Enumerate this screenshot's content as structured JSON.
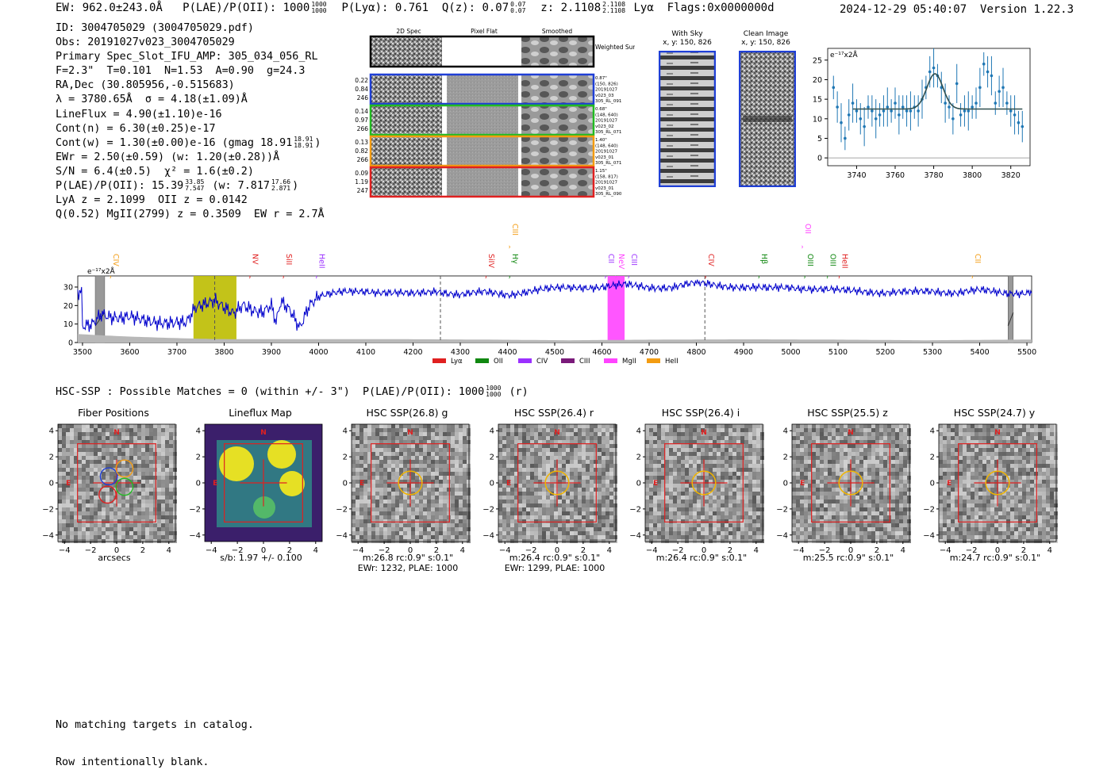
{
  "header": {
    "ew": "EW: 962.0±243.0Å",
    "plae_label": "P(LAE)/P(OII): 1000",
    "plae_hi": "1000",
    "plae_lo": "1000",
    "plya": "P(Lyα): 0.761",
    "qz_label": "Q(z): 0.07",
    "qz_hi": "0.07",
    "qz_lo": "0.07",
    "z_label": "z: 2.1108",
    "z_hi": "2.1108",
    "z_lo": "2.1108",
    "line": "Lyα",
    "flags": "Flags:0x0000000d",
    "timestamp": "2024-12-29 05:40:07",
    "version": "Version 1.22.3"
  },
  "info": {
    "id": "ID: 3004705029 (3004705029.pdf)",
    "obs": "Obs: 20191027v023_3004705029",
    "primary": "Primary Spec_Slot_IFU_AMP: 305_034_056_RL",
    "fit": "F=2.3\"  T=0.101  N=1.53  A=0.90  g=24.3",
    "radec": "RA,Dec (30.805956,-0.515683)",
    "lambda": "λ = 3780.65Å  σ = 4.18(±1.09)Å",
    "lineflux": "LineFlux = 4.90(±1.10)e-16",
    "contn": "Cont(n) = 6.30(±0.25)e-17",
    "contw": "Cont(w) = 1.30(±0.00)e-16 (gmag 18.91",
    "contw_hi": "18.91",
    "contw_lo": "18.91",
    "contw_end": ")",
    "ewr": "EWr = 2.50(±0.59) (w: 1.20(±0.28))Å",
    "sn": "S/N = 6.4(±0.5)  χ² = 1.6(±0.2)",
    "plae": "P(LAE)/P(OII): 15.39",
    "plae_hi": "33.85",
    "plae_lo": "7.547",
    "plae_w": "(w: 7.817",
    "plae_w_hi": "17.66",
    "plae_w_lo": "2.871",
    "plae_w_end": ")",
    "lya": "LyA z = 2.1099  OII z = 0.0142",
    "q": "Q(0.52) MgII(2799) z = 0.3509  EW r = 2.7Å"
  },
  "cutouts": {
    "col_labels": [
      "2D Spec",
      "Pixel Flat",
      "Smoothed"
    ],
    "weighted_label": "Weighted Sum",
    "rows": [
      {
        "left": [
          "0.22",
          "0.84",
          "246"
        ],
        "right": [
          "0.87\"",
          "(150, 826)",
          "20191027",
          "v023_03",
          "305_RL_091"
        ],
        "color": "#1f3fd6"
      },
      {
        "left": [
          "0.14",
          "0.97",
          "266"
        ],
        "right": [
          "0.68\"",
          "(148, 640)",
          "20191027",
          "v023_02",
          "305_RL_071"
        ],
        "color": "#22bb22"
      },
      {
        "left": [
          "0.13",
          "0.82",
          "266"
        ],
        "right": [
          "1.40\"",
          "(148, 640)",
          "20191027",
          "v023_01",
          "305_RL_071"
        ],
        "color": "#f39c12"
      },
      {
        "left": [
          "0.09",
          "1.19",
          "247"
        ],
        "right": [
          "1.15\"",
          "(158, 817)",
          "20191027",
          "v023_01",
          "305_RL_090"
        ],
        "color": "#e02020"
      }
    ],
    "with_sky": "With Sky",
    "with_sky_xy": "x, y: 150, 826",
    "clean": "Clean Image",
    "clean_xy": "x, y: 150, 826"
  },
  "chart_data": [
    {
      "type": "line",
      "title": "",
      "ylabel_unit": "e⁻¹⁷x2Å",
      "xlim": [
        3725,
        3830
      ],
      "ylim": [
        -2,
        28
      ],
      "xticks": [
        3740,
        3760,
        3780,
        3800,
        3820
      ],
      "yticks": [
        0,
        5,
        10,
        15,
        20,
        25
      ],
      "x": [
        3728,
        3730,
        3732,
        3734,
        3736,
        3738,
        3740,
        3742,
        3744,
        3746,
        3748,
        3750,
        3752,
        3754,
        3756,
        3758,
        3760,
        3762,
        3764,
        3766,
        3768,
        3770,
        3772,
        3774,
        3776,
        3778,
        3780,
        3782,
        3784,
        3786,
        3788,
        3790,
        3792,
        3794,
        3796,
        3798,
        3800,
        3802,
        3804,
        3806,
        3808,
        3810,
        3812,
        3814,
        3816,
        3818,
        3820,
        3822,
        3824,
        3826
      ],
      "y": [
        18,
        13,
        9,
        5,
        11,
        14,
        12,
        10,
        8,
        13,
        12,
        10,
        11,
        12,
        13,
        12,
        14,
        11,
        13,
        12,
        12,
        13,
        12,
        15,
        18,
        22,
        23,
        21,
        18,
        14,
        13,
        10,
        19,
        11,
        12,
        12,
        13,
        14,
        18,
        24,
        22,
        21,
        14,
        17,
        18,
        14,
        12,
        11,
        9,
        8
      ],
      "fit": {
        "center": 3780.65,
        "sigma": 4.18,
        "baseline": 12.5,
        "peak": 21.5
      }
    },
    {
      "type": "line",
      "ylabel_unit": "e⁻¹⁷x2Å",
      "xlim": [
        3490,
        5510
      ],
      "ylim": [
        0,
        36
      ],
      "xticks": [
        3500,
        3600,
        3700,
        3800,
        3900,
        4000,
        4100,
        4200,
        4300,
        4400,
        4500,
        4600,
        4700,
        4800,
        4900,
        5000,
        5100,
        5200,
        5300,
        5400,
        5500
      ],
      "yticks": [
        0,
        10,
        20,
        30
      ],
      "highlight_bands": [
        {
          "from": 3735,
          "to": 3826,
          "color": "#bdbd00"
        },
        {
          "from": 4612,
          "to": 4648,
          "color": "#ff44ff"
        }
      ],
      "masked_bands": [
        {
          "from": 3527,
          "to": 3547
        },
        {
          "from": 5460,
          "to": 5471
        }
      ],
      "dashed_lines": [
        3780,
        4258,
        4818
      ],
      "line_markers": [
        {
          "label": "CIV",
          "x": 3560,
          "color": "#f39c12",
          "row": 1
        },
        {
          "label": "NV",
          "x": 3855,
          "color": "#e02020",
          "row": 1
        },
        {
          "label": "SiII",
          "x": 3926,
          "color": "#e02020",
          "row": 1
        },
        {
          "label": "HeII",
          "x": 3996,
          "color": "#9b30ff",
          "row": 1
        },
        {
          "label": "SiIV",
          "x": 4355,
          "color": "#e02020",
          "row": 1
        },
        {
          "label": "CIII",
          "x": 4405,
          "color": "#f39c12",
          "row": 0
        },
        {
          "label": "Hγ",
          "x": 4405,
          "color": "#118811",
          "row": 1
        },
        {
          "label": "CII",
          "x": 4608,
          "color": "#9b30ff",
          "row": 1
        },
        {
          "label": "NeV",
          "x": 4630,
          "color": "#ff44ff",
          "row": 1
        },
        {
          "label": "CIII",
          "x": 4657,
          "color": "#9b30ff",
          "row": 1
        },
        {
          "label": "CIV",
          "x": 4820,
          "color": "#e02020",
          "row": 1
        },
        {
          "label": "Hβ",
          "x": 4933,
          "color": "#118811",
          "row": 1
        },
        {
          "label": "OII",
          "x": 5025,
          "color": "#ff44ff",
          "row": 0
        },
        {
          "label": "OIII",
          "x": 5030,
          "color": "#118811",
          "row": 1
        },
        {
          "label": "OIII",
          "x": 5078,
          "color": "#118811",
          "row": 1
        },
        {
          "label": "HeII",
          "x": 5103,
          "color": "#e02020",
          "row": 1
        },
        {
          "label": "CII",
          "x": 5385,
          "color": "#f39c12",
          "row": 1
        }
      ],
      "legend": [
        {
          "label": "Lyα",
          "color": "#e02020"
        },
        {
          "label": "OII",
          "color": "#118811"
        },
        {
          "label": "CIV",
          "color": "#9b30ff"
        },
        {
          "label": "CIII",
          "color": "#7a1a7a"
        },
        {
          "label": "MgII",
          "color": "#ff44ff"
        },
        {
          "label": "HeII",
          "color": "#f39c12"
        }
      ],
      "spectrum_anchors": [
        [
          3500,
          10
        ],
        [
          3520,
          11
        ],
        [
          3540,
          16
        ],
        [
          3560,
          13
        ],
        [
          3580,
          12
        ],
        [
          3600,
          13
        ],
        [
          3650,
          12
        ],
        [
          3700,
          11
        ],
        [
          3720,
          10
        ],
        [
          3740,
          18
        ],
        [
          3760,
          20
        ],
        [
          3780,
          23
        ],
        [
          3800,
          20
        ],
        [
          3820,
          17
        ],
        [
          3840,
          21
        ],
        [
          3860,
          17
        ],
        [
          3880,
          15
        ],
        [
          3900,
          19
        ],
        [
          3910,
          10
        ],
        [
          3920,
          22
        ],
        [
          3940,
          18
        ],
        [
          3960,
          9
        ],
        [
          3980,
          21
        ],
        [
          4000,
          25
        ],
        [
          4050,
          27
        ],
        [
          4100,
          28
        ],
        [
          4150,
          27
        ],
        [
          4200,
          26
        ],
        [
          4250,
          28
        ],
        [
          4300,
          26
        ],
        [
          4350,
          27
        ],
        [
          4400,
          26
        ],
        [
          4450,
          28
        ],
        [
          4500,
          29
        ],
        [
          4550,
          30
        ],
        [
          4600,
          30
        ],
        [
          4650,
          31
        ],
        [
          4700,
          30
        ],
        [
          4750,
          30
        ],
        [
          4800,
          32
        ],
        [
          4850,
          31
        ],
        [
          4900,
          30
        ],
        [
          4950,
          29
        ],
        [
          5000,
          30
        ],
        [
          5050,
          29
        ],
        [
          5100,
          28
        ],
        [
          5150,
          28
        ],
        [
          5200,
          27
        ],
        [
          5250,
          27
        ],
        [
          5300,
          28
        ],
        [
          5350,
          27
        ],
        [
          5400,
          28
        ],
        [
          5450,
          27
        ],
        [
          5500,
          27
        ],
        [
          5510,
          28
        ]
      ]
    }
  ],
  "hsc": {
    "summary": "HSC-SSP : Possible Matches = 0 (within +/- 3\")  P(LAE)/P(OII): 1000",
    "plae_hi": "1000",
    "plae_lo": "1000",
    "suffix": "(r)",
    "panels": [
      {
        "title": "Fiber Positions",
        "caption": [
          "arcsecs"
        ],
        "kind": "fiber"
      },
      {
        "title": "Lineflux Map",
        "caption": [
          "s/b: 1.97 +/- 0.100"
        ],
        "kind": "lineflux"
      },
      {
        "title": "HSC SSP(26.8) g",
        "caption": [
          "m:26.8 rc:0.9\"  s:0.1\"",
          "EWr: 1232, PLAE: 1000"
        ],
        "kind": "hsc"
      },
      {
        "title": "HSC SSP(26.4) r",
        "caption": [
          "m:26.4 rc:0.9\"  s:0.1\"",
          "EWr: 1299, PLAE: 1000"
        ],
        "kind": "hsc"
      },
      {
        "title": "HSC SSP(26.4) i",
        "caption": [
          "m:26.4 rc:0.9\"  s:0.1\""
        ],
        "kind": "hsc"
      },
      {
        "title": "HSC SSP(25.5) z",
        "caption": [
          "m:25.5 rc:0.9\"  s:0.1\""
        ],
        "kind": "hsc"
      },
      {
        "title": "HSC SSP(24.7) y",
        "caption": [
          "m:24.7 rc:0.9\"  s:0.1\""
        ],
        "kind": "hsc"
      }
    ],
    "tick_labels": [
      "−4",
      "−2",
      "0",
      "2",
      "4"
    ],
    "n_label": "N",
    "e_label": "E"
  },
  "notes": {
    "line1": "No matching targets in catalog.",
    "line2": "Row intentionally blank."
  },
  "colors": {
    "spectrum": "#0000cc",
    "errorbar": "#1f77b4",
    "fit": "#2f4f4f",
    "red": "#e02020",
    "aperture": "#f0b400"
  }
}
